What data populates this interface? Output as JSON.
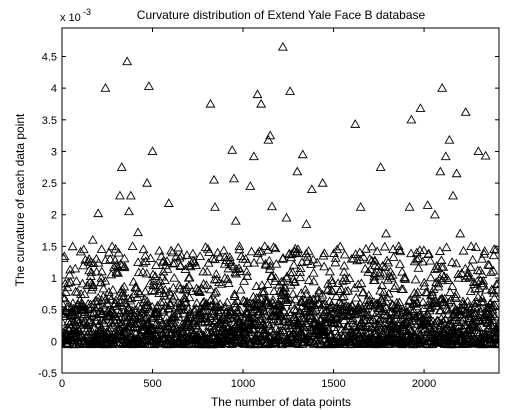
{
  "chart_data": {
    "type": "scatter",
    "title": "Curvature distribution of Extend Yale Face B database",
    "xlabel": "The number of data points",
    "ylabel": "The curvature of each data point",
    "y_multiplier_label": "x 10",
    "y_multiplier_exponent": "-3",
    "xlim": [
      0,
      2414
    ],
    "ylim": [
      -0.5,
      4.95
    ],
    "x_ticks": [
      0,
      500,
      1000,
      1500,
      2000
    ],
    "x_tick_labels": [
      "0",
      "500",
      "1000",
      "1500",
      "2000"
    ],
    "y_ticks": [
      -0.5,
      0,
      0.5,
      1,
      1.5,
      2,
      2.5,
      3,
      3.5,
      4,
      4.5
    ],
    "y_tick_labels": [
      "-0.5",
      "0",
      "0.5",
      "1",
      "1.5",
      "2",
      "2.5",
      "3",
      "3.5",
      "4",
      "4.5"
    ],
    "marker": "triangle",
    "marker_color": "#000000",
    "grid": false,
    "legend": "none",
    "highlighted_points": [
      {
        "x": 30,
        "y": 0.85
      },
      {
        "x": 60,
        "y": 0.6
      },
      {
        "x": 80,
        "y": 0.95
      },
      {
        "x": 100,
        "y": 0.65
      },
      {
        "x": 120,
        "y": 1.45
      },
      {
        "x": 150,
        "y": 1.3
      },
      {
        "x": 170,
        "y": 1.6
      },
      {
        "x": 190,
        "y": 1.3
      },
      {
        "x": 200,
        "y": 2.02
      },
      {
        "x": 220,
        "y": 1.1
      },
      {
        "x": 240,
        "y": 4.0
      },
      {
        "x": 260,
        "y": 1.4
      },
      {
        "x": 300,
        "y": 1.2
      },
      {
        "x": 320,
        "y": 2.3
      },
      {
        "x": 330,
        "y": 2.75
      },
      {
        "x": 360,
        "y": 4.42
      },
      {
        "x": 370,
        "y": 2.05
      },
      {
        "x": 380,
        "y": 2.3
      },
      {
        "x": 390,
        "y": 1.5
      },
      {
        "x": 420,
        "y": 1.72
      },
      {
        "x": 460,
        "y": 1.35
      },
      {
        "x": 470,
        "y": 2.5
      },
      {
        "x": 480,
        "y": 4.03
      },
      {
        "x": 500,
        "y": 3.0
      },
      {
        "x": 520,
        "y": 1.2
      },
      {
        "x": 560,
        "y": 1.1
      },
      {
        "x": 590,
        "y": 2.18
      },
      {
        "x": 620,
        "y": 1.0
      },
      {
        "x": 660,
        "y": 1.35
      },
      {
        "x": 700,
        "y": 1.0
      },
      {
        "x": 740,
        "y": 1.2
      },
      {
        "x": 780,
        "y": 1.1
      },
      {
        "x": 820,
        "y": 3.75
      },
      {
        "x": 840,
        "y": 2.55
      },
      {
        "x": 845,
        "y": 2.12
      },
      {
        "x": 860,
        "y": 1.4
      },
      {
        "x": 900,
        "y": 1.0
      },
      {
        "x": 940,
        "y": 3.02
      },
      {
        "x": 950,
        "y": 2.57
      },
      {
        "x": 960,
        "y": 1.9
      },
      {
        "x": 980,
        "y": 1.5
      },
      {
        "x": 1000,
        "y": 1.3
      },
      {
        "x": 1020,
        "y": 1.1
      },
      {
        "x": 1040,
        "y": 2.45
      },
      {
        "x": 1060,
        "y": 2.92
      },
      {
        "x": 1080,
        "y": 3.9
      },
      {
        "x": 1100,
        "y": 3.75
      },
      {
        "x": 1120,
        "y": 1.5
      },
      {
        "x": 1140,
        "y": 3.18
      },
      {
        "x": 1150,
        "y": 3.25
      },
      {
        "x": 1160,
        "y": 2.13
      },
      {
        "x": 1180,
        "y": 1.0
      },
      {
        "x": 1220,
        "y": 4.65
      },
      {
        "x": 1240,
        "y": 1.95
      },
      {
        "x": 1260,
        "y": 3.95
      },
      {
        "x": 1300,
        "y": 2.68
      },
      {
        "x": 1330,
        "y": 2.95
      },
      {
        "x": 1350,
        "y": 1.85
      },
      {
        "x": 1380,
        "y": 2.4
      },
      {
        "x": 1420,
        "y": 0.8
      },
      {
        "x": 1440,
        "y": 2.5
      },
      {
        "x": 1480,
        "y": 1.1
      },
      {
        "x": 1520,
        "y": 1.45
      },
      {
        "x": 1560,
        "y": 1.0
      },
      {
        "x": 1600,
        "y": 1.3
      },
      {
        "x": 1620,
        "y": 3.43
      },
      {
        "x": 1650,
        "y": 2.12
      },
      {
        "x": 1700,
        "y": 1.3
      },
      {
        "x": 1730,
        "y": 1.2
      },
      {
        "x": 1760,
        "y": 2.75
      },
      {
        "x": 1790,
        "y": 1.7
      },
      {
        "x": 1820,
        "y": 1.0
      },
      {
        "x": 1860,
        "y": 1.5
      },
      {
        "x": 1890,
        "y": 1.0
      },
      {
        "x": 1920,
        "y": 2.12
      },
      {
        "x": 1930,
        "y": 3.5
      },
      {
        "x": 1960,
        "y": 1.4
      },
      {
        "x": 1980,
        "y": 3.68
      },
      {
        "x": 2020,
        "y": 2.15
      },
      {
        "x": 2060,
        "y": 2.0
      },
      {
        "x": 2090,
        "y": 2.68
      },
      {
        "x": 2100,
        "y": 4.0
      },
      {
        "x": 2120,
        "y": 2.92
      },
      {
        "x": 2140,
        "y": 3.18
      },
      {
        "x": 2160,
        "y": 2.3
      },
      {
        "x": 2180,
        "y": 2.65
      },
      {
        "x": 2200,
        "y": 1.7
      },
      {
        "x": 2230,
        "y": 3.62
      },
      {
        "x": 2260,
        "y": 1.5
      },
      {
        "x": 2300,
        "y": 3.0
      },
      {
        "x": 2320,
        "y": 1.3
      },
      {
        "x": 2340,
        "y": 2.93
      },
      {
        "x": 2360,
        "y": 1.2
      },
      {
        "x": 2380,
        "y": 0.8
      },
      {
        "x": 2400,
        "y": 0.9
      }
    ],
    "bulk_points": {
      "count": 2414,
      "x_range": [
        0,
        2414
      ],
      "dense_band": [
        -0.05,
        0.6
      ],
      "sparse_band": [
        0.6,
        1.5
      ],
      "description_values": "dense cloud of small curvature values concentrated near 0 to 0.5 across all data points"
    }
  }
}
